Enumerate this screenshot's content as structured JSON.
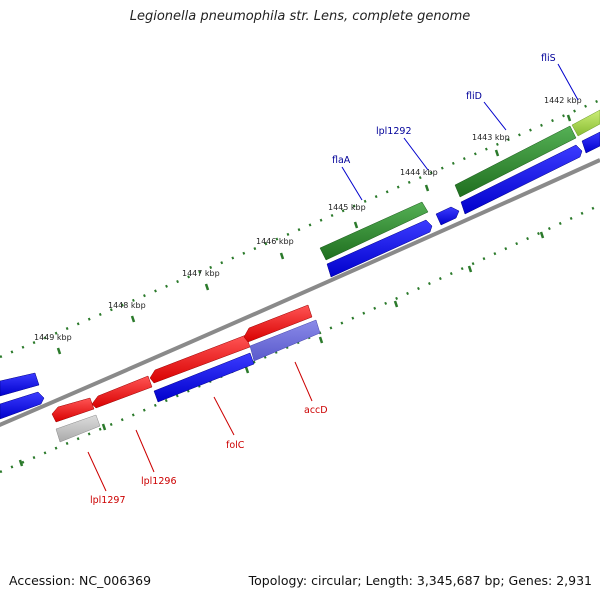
{
  "title": "Legionella pneumophila str. Lens, complete genome",
  "footer": {
    "accession": "Accession: NC_006369",
    "summary": "Topology: circular; Length: 3,345,687 bp; Genes: 2,931"
  },
  "colors": {
    "forward_cds": "#2b8a2b",
    "forward_other": "#0000ee",
    "reverse_cds": "#ee0000",
    "reverse_other": "#0000ee",
    "reverse_faded": "#6666dd",
    "pseudo": "#bbbbbb",
    "backbone": "#777777",
    "tick": "#2b7a2b",
    "label_forward": "#000099",
    "label_reverse": "#cc0000"
  },
  "tick_labels": [
    "1449 kbp",
    "1448 kbp",
    "1447 kbp",
    "1446 kbp",
    "1445 kbp",
    "1444 kbp",
    "1443 kbp",
    "1442 kbp"
  ],
  "gene_labels": {
    "forward": [
      "fliS",
      "fliD",
      "lpl1292",
      "flaA"
    ],
    "reverse": [
      "accD",
      "folC",
      "lpl1296",
      "lpl1297"
    ]
  }
}
